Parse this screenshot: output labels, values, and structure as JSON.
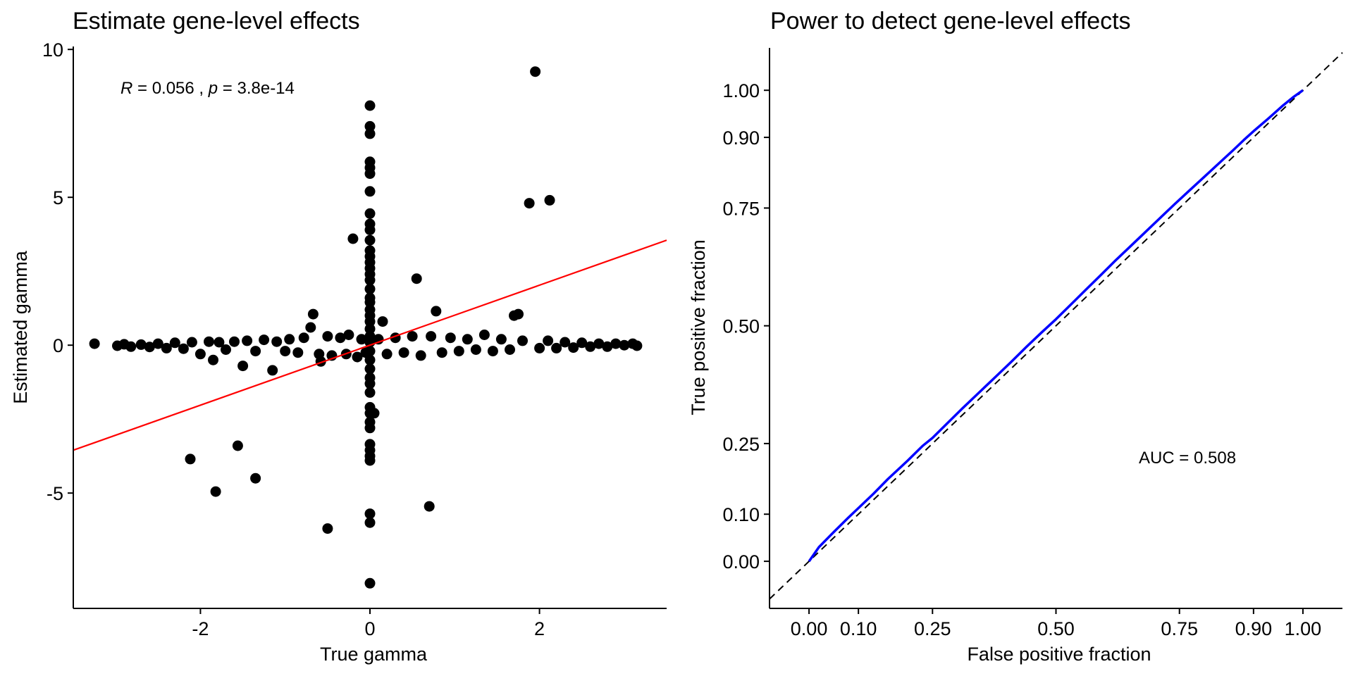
{
  "chart_data": [
    {
      "type": "scatter",
      "title": "Estimate gene-level effects",
      "xlabel": "True gamma",
      "ylabel": "Estimated gamma",
      "xlim": [
        -3.5,
        3.5
      ],
      "ylim": [
        -8.9,
        10.1
      ],
      "xticks": [
        "-2",
        "0",
        "2"
      ],
      "xtick_values": [
        -2,
        0,
        2
      ],
      "yticks": [
        "-5",
        "0",
        "5",
        "10"
      ],
      "ytick_values": [
        -5,
        0,
        5,
        10
      ],
      "annotation": {
        "r_label": "R",
        "r_text": " = 0.056 , ",
        "p_label": "p",
        "p_text": " = 3.8e-14"
      },
      "fit_line": {
        "color": "#ff0000",
        "x": [
          -3.5,
          3.5
        ],
        "y": [
          -3.55,
          3.55
        ]
      },
      "point_color": "#000000",
      "points": [
        [
          -3.25,
          0.05
        ],
        [
          -2.98,
          -0.02
        ],
        [
          -2.9,
          0.03
        ],
        [
          -2.82,
          -0.05
        ],
        [
          -2.7,
          0.02
        ],
        [
          -2.6,
          -0.06
        ],
        [
          -2.5,
          0.05
        ],
        [
          -2.4,
          -0.1
        ],
        [
          -2.3,
          0.08
        ],
        [
          -2.2,
          -0.12
        ],
        [
          -2.1,
          0.1
        ],
        [
          -2.0,
          -0.3
        ],
        [
          -1.9,
          0.12
        ],
        [
          -1.85,
          -0.5
        ],
        [
          -1.78,
          0.1
        ],
        [
          -1.7,
          -0.15
        ],
        [
          -1.6,
          0.12
        ],
        [
          -1.5,
          -0.7
        ],
        [
          -1.45,
          0.15
        ],
        [
          -1.35,
          -0.2
        ],
        [
          -1.25,
          0.18
        ],
        [
          -1.15,
          -0.85
        ],
        [
          -1.1,
          0.12
        ],
        [
          -1.0,
          -0.2
        ],
        [
          -0.95,
          0.2
        ],
        [
          -0.85,
          -0.25
        ],
        [
          -0.78,
          0.25
        ],
        [
          -0.7,
          0.6
        ],
        [
          -0.67,
          1.05
        ],
        [
          -0.6,
          -0.3
        ],
        [
          -0.58,
          -0.55
        ],
        [
          -0.5,
          0.3
        ],
        [
          -0.45,
          -0.35
        ],
        [
          -0.35,
          0.25
        ],
        [
          -0.28,
          -0.3
        ],
        [
          -0.25,
          0.35
        ],
        [
          -0.2,
          3.6
        ],
        [
          -0.15,
          -0.4
        ],
        [
          -0.1,
          0.2
        ],
        [
          -0.05,
          -0.25
        ],
        [
          -2.12,
          -3.85
        ],
        [
          -1.82,
          -4.95
        ],
        [
          -1.56,
          -3.4
        ],
        [
          -1.35,
          -4.5
        ],
        [
          -0.5,
          -6.2
        ],
        [
          0,
          8.1
        ],
        [
          0,
          7.4
        ],
        [
          0,
          7.15
        ],
        [
          0,
          6.2
        ],
        [
          0,
          6.0
        ],
        [
          0,
          5.8
        ],
        [
          0,
          5.2
        ],
        [
          0,
          4.45
        ],
        [
          0,
          4.1
        ],
        [
          0,
          3.9
        ],
        [
          0,
          3.55
        ],
        [
          0,
          3.2
        ],
        [
          0,
          3.0
        ],
        [
          0,
          2.8
        ],
        [
          0,
          2.6
        ],
        [
          0,
          2.4
        ],
        [
          0,
          2.2
        ],
        [
          0,
          1.9
        ],
        [
          0,
          1.6
        ],
        [
          0,
          1.45
        ],
        [
          0,
          1.2
        ],
        [
          0,
          1.0
        ],
        [
          0,
          0.8
        ],
        [
          0,
          0.55
        ],
        [
          0,
          0.3
        ],
        [
          0,
          0.1
        ],
        [
          0,
          -0.2
        ],
        [
          0,
          -0.5
        ],
        [
          0,
          -0.8
        ],
        [
          0,
          -1.1
        ],
        [
          0,
          -1.3
        ],
        [
          0,
          -1.6
        ],
        [
          0,
          -2.1
        ],
        [
          0,
          -2.3
        ],
        [
          0,
          -2.6
        ],
        [
          0,
          -2.8
        ],
        [
          0,
          -3.35
        ],
        [
          0,
          -3.55
        ],
        [
          0,
          -3.75
        ],
        [
          0,
          -3.9
        ],
        [
          0,
          -5.7
        ],
        [
          0,
          -6.0
        ],
        [
          0,
          -8.05
        ],
        [
          0.05,
          -2.3
        ],
        [
          0.1,
          0.2
        ],
        [
          0.15,
          0.8
        ],
        [
          0.2,
          -0.3
        ],
        [
          0.3,
          0.25
        ],
        [
          0.4,
          -0.25
        ],
        [
          0.5,
          0.3
        ],
        [
          0.55,
          2.25
        ],
        [
          0.6,
          -0.35
        ],
        [
          0.7,
          -5.45
        ],
        [
          0.72,
          0.3
        ],
        [
          0.78,
          1.15
        ],
        [
          0.85,
          -0.25
        ],
        [
          0.95,
          0.25
        ],
        [
          1.05,
          -0.2
        ],
        [
          1.15,
          0.2
        ],
        [
          1.25,
          -0.15
        ],
        [
          1.35,
          0.35
        ],
        [
          1.45,
          -0.2
        ],
        [
          1.55,
          0.2
        ],
        [
          1.65,
          -0.15
        ],
        [
          1.7,
          1.0
        ],
        [
          1.75,
          1.05
        ],
        [
          1.8,
          0.15
        ],
        [
          1.88,
          4.8
        ],
        [
          1.95,
          9.25
        ],
        [
          2.0,
          -0.1
        ],
        [
          2.1,
          0.15
        ],
        [
          2.12,
          4.9
        ],
        [
          2.2,
          -0.1
        ],
        [
          2.3,
          0.1
        ],
        [
          2.4,
          -0.08
        ],
        [
          2.5,
          0.08
        ],
        [
          2.6,
          -0.05
        ],
        [
          2.7,
          0.05
        ],
        [
          2.8,
          -0.05
        ],
        [
          2.9,
          0.05
        ],
        [
          3.0,
          0.0
        ],
        [
          3.1,
          0.05
        ],
        [
          3.15,
          -0.02
        ]
      ]
    },
    {
      "type": "line",
      "title": "Power to detect gene-level effects",
      "xlabel": "False positive fraction",
      "ylabel": "True positive fraction",
      "xlim": [
        -0.08,
        1.08
      ],
      "ylim": [
        -0.1,
        1.09
      ],
      "xticks": [
        "0.00",
        "0.10",
        "0.25",
        "0.50",
        "0.75",
        "0.90",
        "1.00"
      ],
      "xtick_values": [
        0,
        0.1,
        0.25,
        0.5,
        0.75,
        0.9,
        1.0
      ],
      "yticks": [
        "0.00",
        "0.10",
        "0.25",
        "0.50",
        "0.75",
        "0.90",
        "1.00"
      ],
      "ytick_values": [
        0,
        0.1,
        0.25,
        0.5,
        0.75,
        0.9,
        1.0
      ],
      "annotation": "AUC = 0.508",
      "roc_color": "#0000ff",
      "diagonal_color": "#000000",
      "roc_x": [
        0,
        0.02,
        0.05,
        0.08,
        0.1,
        0.13,
        0.16,
        0.2,
        0.23,
        0.25,
        0.28,
        0.31,
        0.35,
        0.38,
        0.41,
        0.44,
        0.47,
        0.5,
        0.53,
        0.56,
        0.59,
        0.62,
        0.65,
        0.68,
        0.71,
        0.74,
        0.77,
        0.8,
        0.83,
        0.86,
        0.88,
        0.9,
        0.93,
        0.96,
        0.98,
        1.0
      ],
      "roc_y": [
        0,
        0.03,
        0.062,
        0.093,
        0.113,
        0.143,
        0.175,
        0.214,
        0.245,
        0.262,
        0.293,
        0.324,
        0.364,
        0.394,
        0.424,
        0.455,
        0.485,
        0.514,
        0.545,
        0.576,
        0.607,
        0.638,
        0.668,
        0.698,
        0.728,
        0.758,
        0.787,
        0.816,
        0.845,
        0.874,
        0.894,
        0.913,
        0.94,
        0.968,
        0.985,
        1.0
      ]
    }
  ]
}
